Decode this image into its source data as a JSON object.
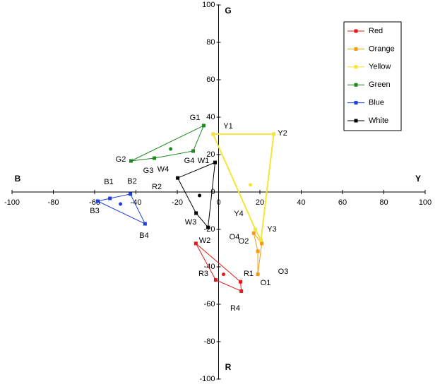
{
  "chart_data": {
    "type": "polygon",
    "x_axis_left_label": "B",
    "x_axis_right_label": "Y",
    "y_axis_top_label": "G",
    "y_axis_bottom_label": "R",
    "xlim": [
      -100,
      100
    ],
    "ylim": [
      -100,
      100
    ],
    "xticks": [
      -100,
      -80,
      -60,
      -40,
      -20,
      0,
      20,
      40,
      60,
      80,
      100
    ],
    "yticks": [
      -100,
      -80,
      -60,
      -40,
      -20,
      0,
      20,
      40,
      60,
      80,
      100
    ],
    "legend_position": "upper right",
    "series": [
      {
        "name": "Red",
        "color": "#e31a1c",
        "x": [
          -11,
          10.6,
          11,
          -1.4
        ],
        "y": [
          -27.5,
          -48,
          -53,
          -47
        ],
        "centroid": {
          "x": 2.4,
          "y": -44
        }
      },
      {
        "name": "Orange",
        "color": "#f39c12",
        "x": [
          17,
          19,
          19,
          20.9
        ],
        "y": [
          -22,
          -31.7,
          -44,
          -27.5
        ]
      },
      {
        "name": "Yellow",
        "color": "#f4e632",
        "x": [
          -2.7,
          26.7,
          20.5,
          17.8
        ],
        "y": [
          31,
          31,
          -25.7,
          -20
        ],
        "centroid": {
          "x": 15.4,
          "y": 3.8
        }
      },
      {
        "name": "Green",
        "color": "#1e8a1e",
        "x": [
          -7.2,
          -42.4,
          -31.1,
          -12.3
        ],
        "y": [
          35.5,
          16.6,
          18.1,
          21.9
        ],
        "centroid": {
          "x": -23.2,
          "y": 23
        }
      },
      {
        "name": "Blue",
        "color": "#1f3fe0",
        "x": [
          -58.5,
          -52.6,
          -42.7,
          -35.6
        ],
        "y": [
          -4.9,
          -3.4,
          -1.1,
          -17
        ],
        "centroid": {
          "x": -47.5,
          "y": -6.4
        }
      },
      {
        "name": "White",
        "color": "#000000",
        "x": [
          -1.7,
          -19.8,
          -10.9,
          -5.1
        ],
        "y": [
          15.8,
          7.5,
          -11.3,
          -18.9
        ],
        "centroid": {
          "x": -9.2,
          "y": -1.9
        }
      }
    ],
    "annotations": [
      "G1",
      "G2",
      "G3",
      "G4",
      "W4",
      "W1",
      "Y1",
      "Y2",
      "B1",
      "B2",
      "B3",
      "B4",
      "R2",
      "Y4",
      "Y3",
      "O4",
      "O2",
      "W3",
      "W2",
      "R1",
      "R3",
      "O3",
      "O1",
      "R4"
    ]
  }
}
